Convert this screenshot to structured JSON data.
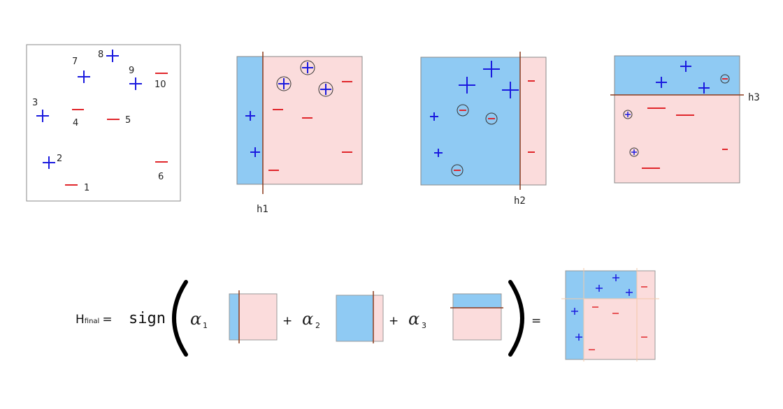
{
  "colors": {
    "positive": "#1a1adf",
    "negative": "#e0262b",
    "blue_region": "#8fcaf3",
    "pink_region": "#fbdcdc",
    "boundary": "#8b3a1c",
    "frame": "#888888"
  },
  "points": {
    "labels": [
      "1",
      "2",
      "3",
      "4",
      "5",
      "6",
      "7",
      "8",
      "9",
      "10"
    ]
  },
  "classifiers": {
    "h1": "h1",
    "h2": "h2",
    "h3": "h3"
  },
  "formula": {
    "h_letter": "H",
    "h_sub": "final",
    "equals": "=",
    "sign": "sign",
    "alpha": "α",
    "alpha1_sub": "1",
    "alpha2_sub": "2",
    "alpha3_sub": "3",
    "plus": "+",
    "result_equals": "="
  }
}
